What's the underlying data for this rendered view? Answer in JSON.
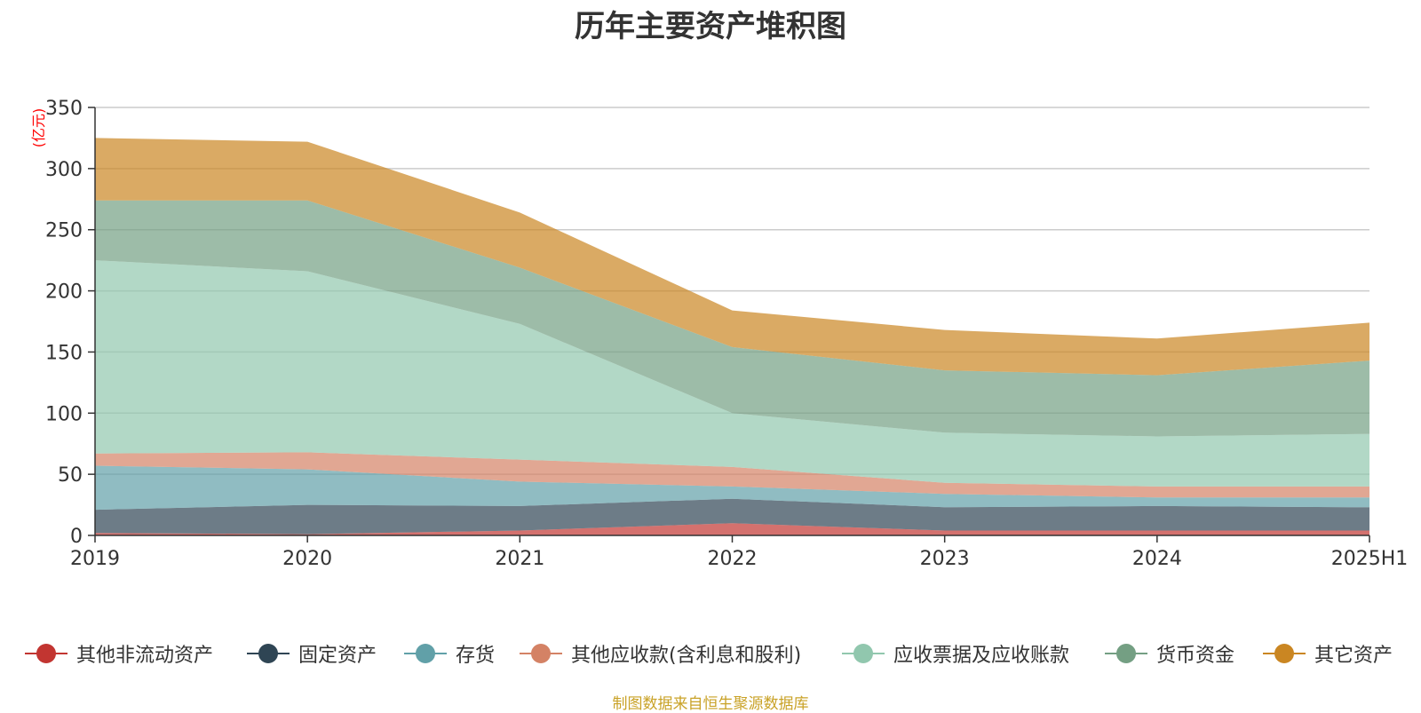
{
  "title": "历年主要资产堆积图",
  "source_note": "制图数据来自恒生聚源数据库",
  "chart_data": {
    "type": "area",
    "stacked": true,
    "title": "历年主要资产堆积图",
    "ylabel": "(亿元)",
    "xlabel": "",
    "categories": [
      "2019",
      "2020",
      "2021",
      "2022",
      "2023",
      "2024",
      "2025H1"
    ],
    "ylim": [
      0,
      350
    ],
    "yticks": [
      0,
      50,
      100,
      150,
      200,
      250,
      300,
      350
    ],
    "grid": true,
    "legend_position": "bottom",
    "series": [
      {
        "name": "其他非流动资产",
        "color": "#c23531",
        "values": [
          2,
          1,
          4,
          10,
          4,
          4,
          4
        ]
      },
      {
        "name": "固定资产",
        "color": "#2f4554",
        "values": [
          19,
          24,
          20,
          20,
          19,
          20,
          19
        ]
      },
      {
        "name": "存货",
        "color": "#61a0a8",
        "values": [
          36,
          29,
          20,
          10,
          11,
          7,
          8
        ]
      },
      {
        "name": "其他应收款(含利息和股利)",
        "color": "#d48265",
        "values": [
          10,
          14,
          18,
          16,
          9,
          9,
          9
        ]
      },
      {
        "name": "应收票据及应收账款",
        "color": "#91c7ae",
        "values": [
          158,
          148,
          111,
          44,
          41,
          41,
          43
        ]
      },
      {
        "name": "货币资金",
        "color": "#749f83",
        "values": [
          49,
          58,
          46,
          54,
          51,
          50,
          60
        ]
      },
      {
        "name": "其它资产",
        "color": "#ca8622",
        "values": [
          51,
          48,
          45,
          30,
          33,
          30,
          31
        ]
      }
    ]
  }
}
